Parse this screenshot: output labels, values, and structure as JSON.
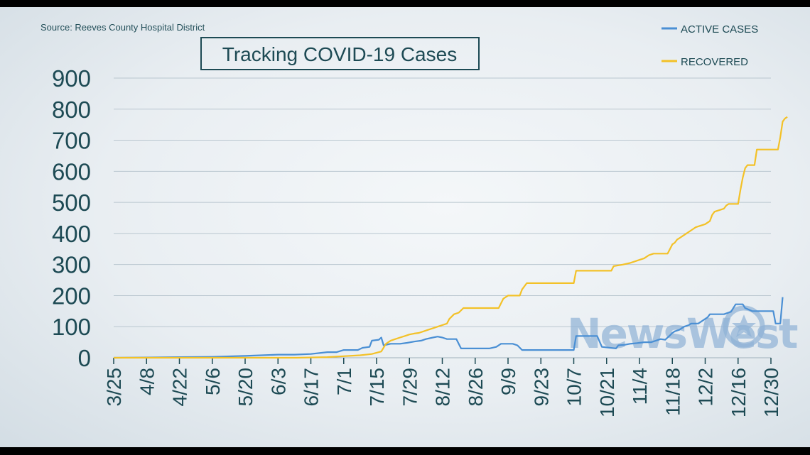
{
  "source": "Source: Reeves County Hospital District",
  "chart_data": {
    "type": "line",
    "title": "Tracking COVID-19 Cases",
    "xlabel": "",
    "ylabel": "",
    "ylim": [
      0,
      900
    ],
    "yticks": [
      "0",
      "100",
      "200",
      "300",
      "400",
      "500",
      "600",
      "700",
      "800",
      "900"
    ],
    "xticks": [
      "3/25",
      "4/8",
      "4/22",
      "5/6",
      "5/20",
      "6/3",
      "6/17",
      "7/1",
      "7/15",
      "7/29",
      "8/12",
      "8/26",
      "9/9",
      "9/23",
      "10/7",
      "10/21",
      "11/4",
      "11/18",
      "12/2",
      "12/16",
      "12/30"
    ],
    "grid": true,
    "legend_position": "top-right",
    "x_unit": "days since 3/25",
    "series": [
      {
        "name": "ACTIVE CASES",
        "color": "#4a8fd4",
        "points": [
          [
            0,
            0
          ],
          [
            14,
            1
          ],
          [
            28,
            2
          ],
          [
            42,
            3
          ],
          [
            56,
            6
          ],
          [
            70,
            10
          ],
          [
            77,
            10
          ],
          [
            84,
            12
          ],
          [
            91,
            18
          ],
          [
            95,
            18
          ],
          [
            98,
            25
          ],
          [
            104,
            25
          ],
          [
            106,
            32
          ],
          [
            109,
            35
          ],
          [
            110,
            55
          ],
          [
            113,
            58
          ],
          [
            114,
            65
          ],
          [
            115,
            40
          ],
          [
            118,
            45
          ],
          [
            122,
            45
          ],
          [
            125,
            48
          ],
          [
            128,
            52
          ],
          [
            131,
            55
          ],
          [
            133,
            60
          ],
          [
            136,
            65
          ],
          [
            138,
            68
          ],
          [
            140,
            65
          ],
          [
            142,
            60
          ],
          [
            146,
            60
          ],
          [
            148,
            30
          ],
          [
            155,
            30
          ],
          [
            160,
            30
          ],
          [
            163,
            35
          ],
          [
            165,
            45
          ],
          [
            170,
            45
          ],
          [
            172,
            40
          ],
          [
            174,
            25
          ],
          [
            190,
            25
          ],
          [
            196,
            25
          ],
          [
            197,
            70
          ],
          [
            206,
            70
          ],
          [
            208,
            35
          ],
          [
            214,
            30
          ],
          [
            215,
            40
          ],
          [
            218,
            42
          ],
          [
            220,
            45
          ],
          [
            223,
            47
          ],
          [
            226,
            50
          ],
          [
            229,
            50
          ],
          [
            231,
            55
          ],
          [
            233,
            60
          ],
          [
            235,
            58
          ],
          [
            236,
            65
          ],
          [
            237,
            72
          ],
          [
            238,
            80
          ],
          [
            239,
            85
          ],
          [
            241,
            90
          ],
          [
            243,
            100
          ],
          [
            245,
            105
          ],
          [
            246,
            110
          ],
          [
            249,
            110
          ],
          [
            250,
            115
          ],
          [
            253,
            130
          ],
          [
            254,
            140
          ],
          [
            260,
            140
          ],
          [
            263,
            148
          ],
          [
            265,
            172
          ],
          [
            268,
            172
          ],
          [
            269,
            160
          ],
          [
            272,
            150
          ],
          [
            279,
            150
          ],
          [
            281,
            150
          ],
          [
            282,
            110
          ],
          [
            284,
            110
          ],
          [
            285,
            195
          ]
        ]
      },
      {
        "name": "RECOVERED",
        "color": "#f3c127",
        "points": [
          [
            0,
            0
          ],
          [
            78,
            0
          ],
          [
            91,
            2
          ],
          [
            98,
            5
          ],
          [
            105,
            8
          ],
          [
            110,
            12
          ],
          [
            113,
            18
          ],
          [
            114,
            20
          ],
          [
            116,
            45
          ],
          [
            118,
            55
          ],
          [
            120,
            60
          ],
          [
            122,
            65
          ],
          [
            124,
            70
          ],
          [
            126,
            75
          ],
          [
            128,
            78
          ],
          [
            130,
            80
          ],
          [
            132,
            85
          ],
          [
            134,
            90
          ],
          [
            136,
            95
          ],
          [
            138,
            100
          ],
          [
            140,
            105
          ],
          [
            142,
            110
          ],
          [
            143,
            125
          ],
          [
            145,
            140
          ],
          [
            147,
            145
          ],
          [
            149,
            160
          ],
          [
            164,
            160
          ],
          [
            166,
            190
          ],
          [
            167,
            195
          ],
          [
            168,
            200
          ],
          [
            173,
            200
          ],
          [
            174,
            220
          ],
          [
            176,
            240
          ],
          [
            196,
            240
          ],
          [
            197,
            280
          ],
          [
            212,
            280
          ],
          [
            213,
            295
          ],
          [
            217,
            300
          ],
          [
            220,
            305
          ],
          [
            222,
            310
          ],
          [
            224,
            315
          ],
          [
            226,
            320
          ],
          [
            228,
            330
          ],
          [
            230,
            335
          ],
          [
            236,
            335
          ],
          [
            238,
            365
          ],
          [
            239,
            370
          ],
          [
            240,
            380
          ],
          [
            241,
            385
          ],
          [
            242,
            390
          ],
          [
            244,
            400
          ],
          [
            246,
            410
          ],
          [
            248,
            420
          ],
          [
            250,
            425
          ],
          [
            252,
            430
          ],
          [
            254,
            440
          ],
          [
            255,
            460
          ],
          [
            256,
            470
          ],
          [
            258,
            475
          ],
          [
            260,
            480
          ],
          [
            261,
            490
          ],
          [
            262,
            495
          ],
          [
            266,
            495
          ],
          [
            267,
            540
          ],
          [
            268,
            580
          ],
          [
            269,
            610
          ],
          [
            270,
            620
          ],
          [
            273,
            620
          ],
          [
            274,
            670
          ],
          [
            283,
            670
          ],
          [
            284,
            710
          ],
          [
            285,
            760
          ],
          [
            286,
            770
          ],
          [
            287,
            775
          ]
        ]
      }
    ]
  },
  "watermark": "NewsWest",
  "colors": {
    "text": "#1d4a54",
    "grid": "#b9c6cf",
    "active": "#4a8fd4",
    "recovered": "#f3c127"
  }
}
